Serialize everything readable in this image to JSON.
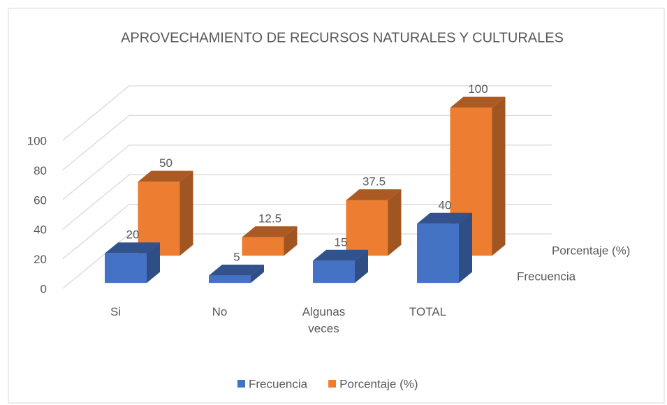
{
  "chart_data": {
    "type": "bar3d",
    "title": "APROVECHAMIENTO DE RECURSOS NATURALES Y CULTURALES",
    "categories": [
      "Si",
      "No",
      "Algunas veces",
      "TOTAL"
    ],
    "series": [
      {
        "name": "Frecuencia",
        "color": "#4472c4",
        "values": [
          20,
          5,
          15,
          40
        ]
      },
      {
        "name": "Porcentaje (%)",
        "color": "#ed7d31",
        "values": [
          50,
          12.5,
          37.5,
          100
        ]
      }
    ],
    "ylim": [
      0,
      100
    ],
    "yticks": [
      0,
      20,
      40,
      60,
      80,
      100
    ],
    "grid": true,
    "legend": "bottom"
  }
}
